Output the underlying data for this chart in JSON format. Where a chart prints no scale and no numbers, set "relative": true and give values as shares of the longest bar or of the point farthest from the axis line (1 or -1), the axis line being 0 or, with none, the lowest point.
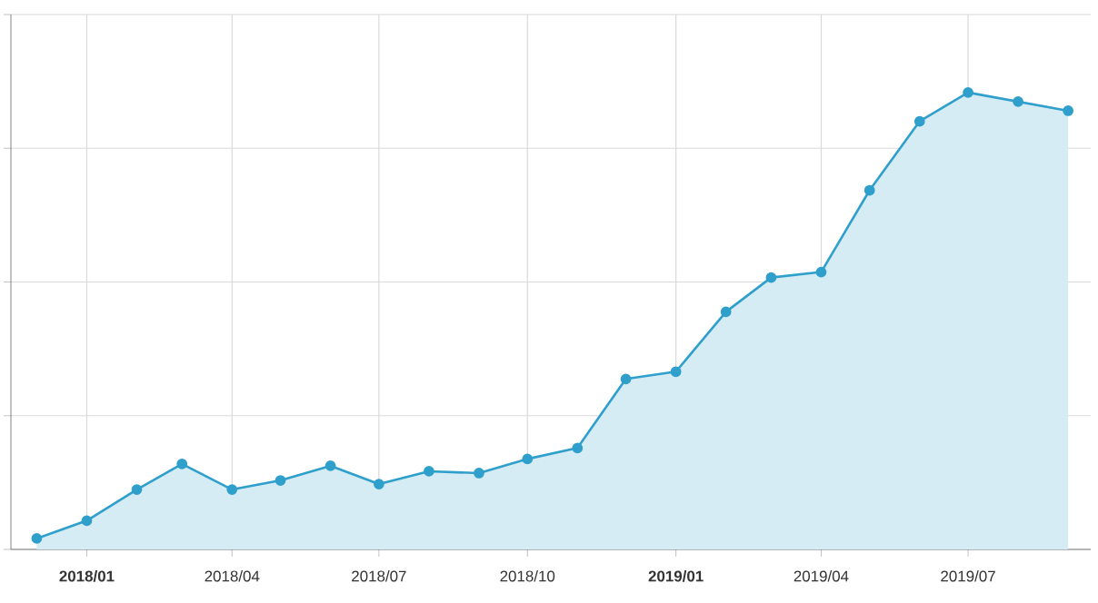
{
  "chart_data": {
    "type": "area",
    "relative": true,
    "grid": true,
    "marker": "circle",
    "x": [
      "2017-12",
      "2018-01",
      "2018-02",
      "2018-03",
      "2018-04",
      "2018-05",
      "2018-06",
      "2018-07",
      "2018-08",
      "2018-09",
      "2018-10",
      "2018-11",
      "2018-12",
      "2019-01",
      "2019-02",
      "2019-03",
      "2019-04",
      "2019-05",
      "2019-06",
      "2019-07",
      "2019-08",
      "2019-09"
    ],
    "xlim": [
      "2017-11-15",
      "2019-09-15"
    ],
    "xticks": [
      {
        "value": "2018-01",
        "label": "2018/01"
      },
      {
        "value": "2018-04",
        "label": "2018/04"
      },
      {
        "value": "2018-07",
        "label": "2018/07"
      },
      {
        "value": "2018-10",
        "label": "2018/10"
      },
      {
        "value": "2019-01",
        "label": "2019/01"
      },
      {
        "value": "2019-04",
        "label": "2019/04"
      },
      {
        "value": "2019-07",
        "label": "2019/07"
      }
    ],
    "series": [
      {
        "color": "#2f9fcb",
        "values": [
          0.024,
          0.063,
          0.131,
          0.187,
          0.131,
          0.151,
          0.183,
          0.143,
          0.171,
          0.167,
          0.198,
          0.222,
          0.373,
          0.389,
          0.52,
          0.595,
          0.607,
          0.786,
          0.937,
          1,
          0.98,
          0.96
        ]
      }
    ]
  }
}
